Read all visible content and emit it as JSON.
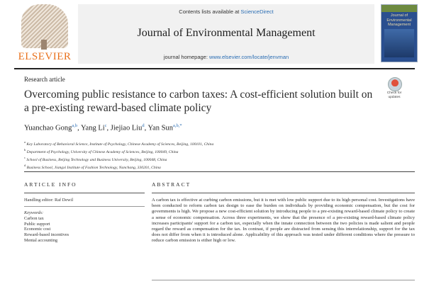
{
  "header": {
    "publisher": "ELSEVIER",
    "contents_prefix": "Contents lists available at",
    "contents_link": "ScienceDirect",
    "journal_title": "Journal of Environmental Management",
    "homepage_prefix": "journal homepage:",
    "homepage_link": "www.elsevier.com/locate/jenvman",
    "cover_title": "Journal of Environmental Management"
  },
  "check_updates": "Check for updates",
  "article": {
    "type": "Research article",
    "title": "Overcoming public resistance to carbon taxes: A cost-efficient solution built on a pre-existing reward-based climate policy",
    "authors": [
      {
        "name": "Yuanchao Gong",
        "sup": "a,b",
        "sep": ", "
      },
      {
        "name": "Yang Li",
        "sup": "c",
        "sep": ", "
      },
      {
        "name": "Jiejiao Liu",
        "sup": "d",
        "sep": ", "
      },
      {
        "name": "Yan Sun",
        "sup": "a,b,*",
        "sep": ""
      }
    ],
    "affiliations": [
      {
        "key": "a",
        "text": "Key Laboratory of Behavioral Science, Institute of Psychology, Chinese Academy of Sciences, Beijing, 100101, China"
      },
      {
        "key": "b",
        "text": "Department of Psychology, University of Chinese Academy of Sciences, Beijing, 100049, China"
      },
      {
        "key": "c",
        "text": "School of Business, Beijing Technology and Business University, Beijing, 100048, China"
      },
      {
        "key": "d",
        "text": "Business School, Jiangxi Institute of Fashion Technology, Nanchang, 330201, China"
      }
    ]
  },
  "article_info": {
    "heading": "ARTICLE INFO",
    "handling_editor": "Handling editor: Raf Dewil",
    "keywords_label": "Keywords:",
    "keywords": [
      "Carbon tax",
      "Public support",
      "Economic cost",
      "Reward-based incentives",
      "Mental accounting"
    ]
  },
  "abstract": {
    "heading": "ABSTRACT",
    "text": "A carbon tax is effective at curbing carbon emissions, but it is met with low public support due to its high personal cost. Investigations have been conducted to reform carbon tax design to ease the burden on individuals by providing economic compensation, but the cost for governments is high. We propose a new cost-efficient solution by introducing people to a pre-existing reward-based climate policy to create a sense of economic compensation. Across three experiments, we show that the presence of a pre-existing reward-based climate policy increases participants' support for a carbon tax, especially when the innate connection between the two policies is made salient and people regard the reward as compensation for the tax. In contrast, if people are distracted from sensing this interrelationship, support for the tax does not differ from when it is introduced alone. Applicability of this approach was tested under different conditions where the pressure to reduce carbon emission is either high or low."
  },
  "colors": {
    "elsevier_orange": "#e9711c",
    "link_blue": "#2a6db3",
    "header_band": "#f1f1f1",
    "cover_blue": "#2a4f8f"
  }
}
